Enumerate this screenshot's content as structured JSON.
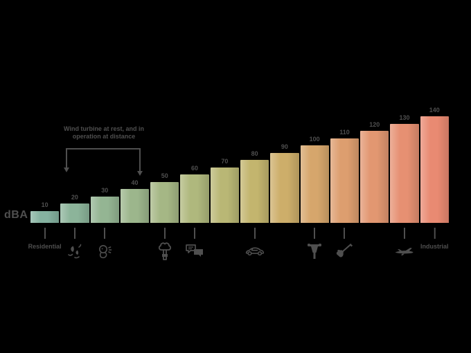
{
  "background_color": "#000000",
  "text_color": "#4f4f4f",
  "axis": {
    "unit_label": "dBA"
  },
  "annotation": {
    "line1": "Wind turbine at rest, and in",
    "line2": "operation at distance",
    "arrow_target_values": [
      20,
      40
    ]
  },
  "chart_data": {
    "type": "bar",
    "title": "",
    "xlabel": "",
    "ylabel": "dBA",
    "ylim": [
      0,
      140
    ],
    "grid": false,
    "legend": "none",
    "values": [
      10,
      20,
      30,
      40,
      50,
      60,
      70,
      80,
      90,
      100,
      110,
      120,
      130,
      140
    ],
    "bars": [
      {
        "value": 10,
        "text_label": "Residential"
      },
      {
        "value": 20,
        "icon": "falling-leaves-icon"
      },
      {
        "value": 30,
        "icon": "whisper-icon"
      },
      {
        "value": 40
      },
      {
        "value": 50,
        "icon": "tree-icon"
      },
      {
        "value": 60,
        "icon": "conversation-icon"
      },
      {
        "value": 70
      },
      {
        "value": 80,
        "icon": "car-icon"
      },
      {
        "value": 90
      },
      {
        "value": 100,
        "icon": "jackhammer-icon"
      },
      {
        "value": 110,
        "icon": "electric-guitar-icon"
      },
      {
        "value": 120
      },
      {
        "value": 130,
        "icon": "airplane-icon"
      },
      {
        "value": 140,
        "text_label": "Industrial"
      }
    ],
    "bar_colors": [
      "#85b2a0",
      "#8cb49a",
      "#94b593",
      "#9cb68c",
      "#a5b785",
      "#afb87d",
      "#b9b775",
      "#c3b56e",
      "#cdae6a",
      "#d6a66c",
      "#dd9e6f",
      "#e29771",
      "#e69072",
      "#e98a72"
    ]
  }
}
